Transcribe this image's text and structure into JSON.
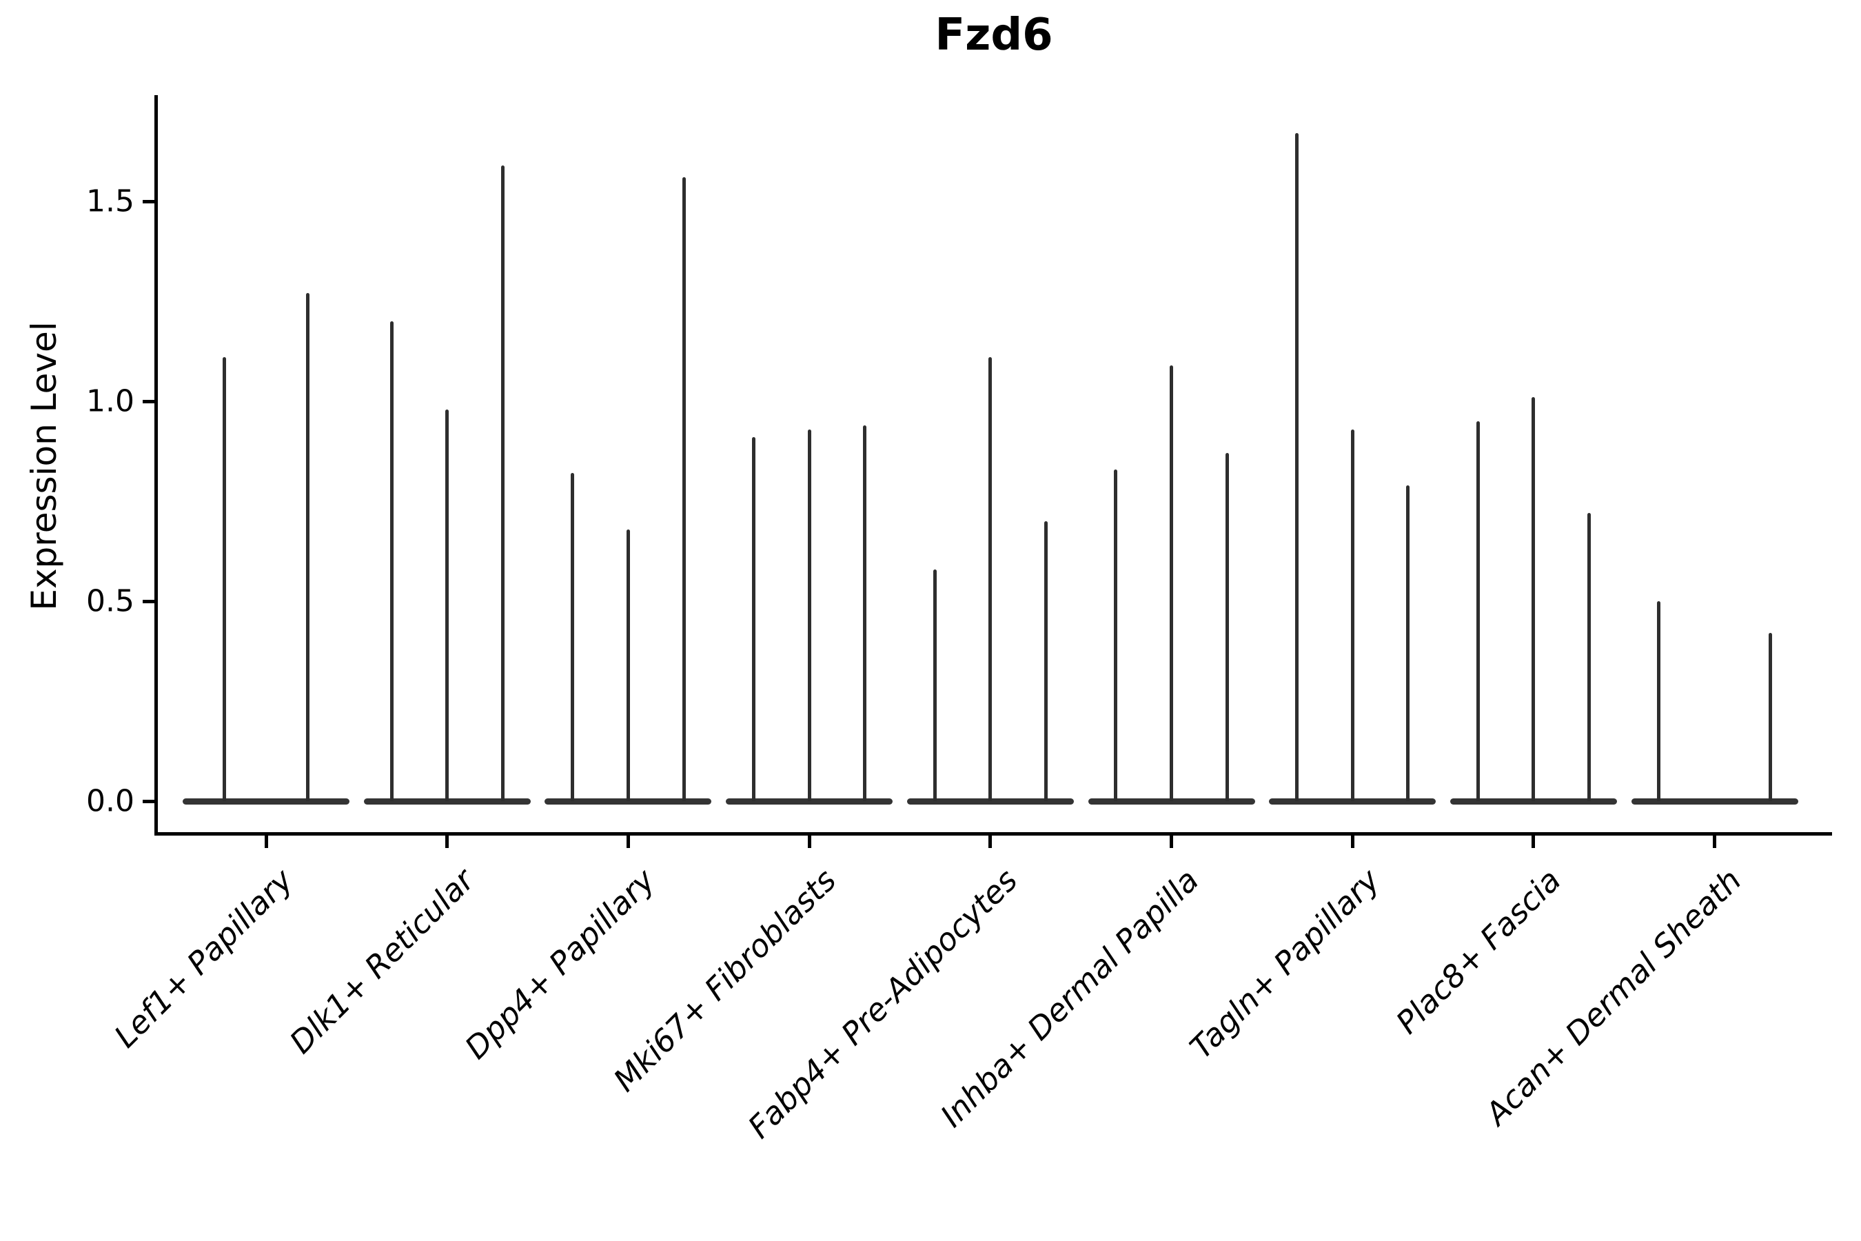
{
  "figure": {
    "title": "Fzd6",
    "y_axis": {
      "label": "Expression Level",
      "tick_labels": [
        "0.0",
        "0.5",
        "1.0",
        "1.5"
      ]
    }
  },
  "chart_data": {
    "type": "violin",
    "title": "Fzd6",
    "xlabel": "",
    "ylabel": "Expression Level",
    "ylim": [
      -0.08,
      1.76
    ],
    "yticks": [
      0.0,
      0.5,
      1.0,
      1.5
    ],
    "ytick_labels": [
      "0.0",
      "0.5",
      "1.0",
      "1.5"
    ],
    "grid": false,
    "legend": "none",
    "categories": [
      "Lef1+ Papillary",
      "Dlk1+ Reticular",
      "Dpp4+ Papillary",
      "Mki67+ Fibroblasts",
      "Fabp4+ Pre-Adipocytes",
      "Inhba+ Dermal Papilla",
      "Tagln+ Papillary",
      "Plac8+ Fascia",
      "Acan+ Dermal Sheath"
    ],
    "groups": [
      {
        "category": "Lef1+ Papillary",
        "violin_maxima": [
          1.11,
          1.27
        ]
      },
      {
        "category": "Dlk1+ Reticular",
        "violin_maxima": [
          1.2,
          0.98,
          1.59
        ]
      },
      {
        "category": "Dpp4+ Papillary",
        "violin_maxima": [
          0.82,
          0.68,
          1.56
        ]
      },
      {
        "category": "Mki67+ Fibroblasts",
        "violin_maxima": [
          0.91,
          0.93,
          0.94
        ]
      },
      {
        "category": "Fabp4+ Pre-Adipocytes",
        "violin_maxima": [
          0.58,
          1.11,
          0.7
        ]
      },
      {
        "category": "Inhba+ Dermal Papilla",
        "violin_maxima": [
          0.83,
          1.09,
          0.87
        ]
      },
      {
        "category": "Tagln+ Papillary",
        "violin_maxima": [
          1.67,
          0.93,
          0.79
        ]
      },
      {
        "category": "Plac8+ Fascia",
        "violin_maxima": [
          0.95,
          1.01,
          0.72
        ]
      },
      {
        "category": "Acan+ Dermal Sheath",
        "violin_maxima": [
          0.5,
          0.0,
          0.42
        ]
      }
    ],
    "notes": "Each violin is a thin spike rising from a flat baseline at 0; violin_maxima is the expression value at each spike tip; 0.0 means a flat violin with no spike."
  },
  "colors": {
    "violin": "#2e2e2e",
    "violin_base": "#343434",
    "axis": "#000000",
    "background": "#ffffff"
  }
}
